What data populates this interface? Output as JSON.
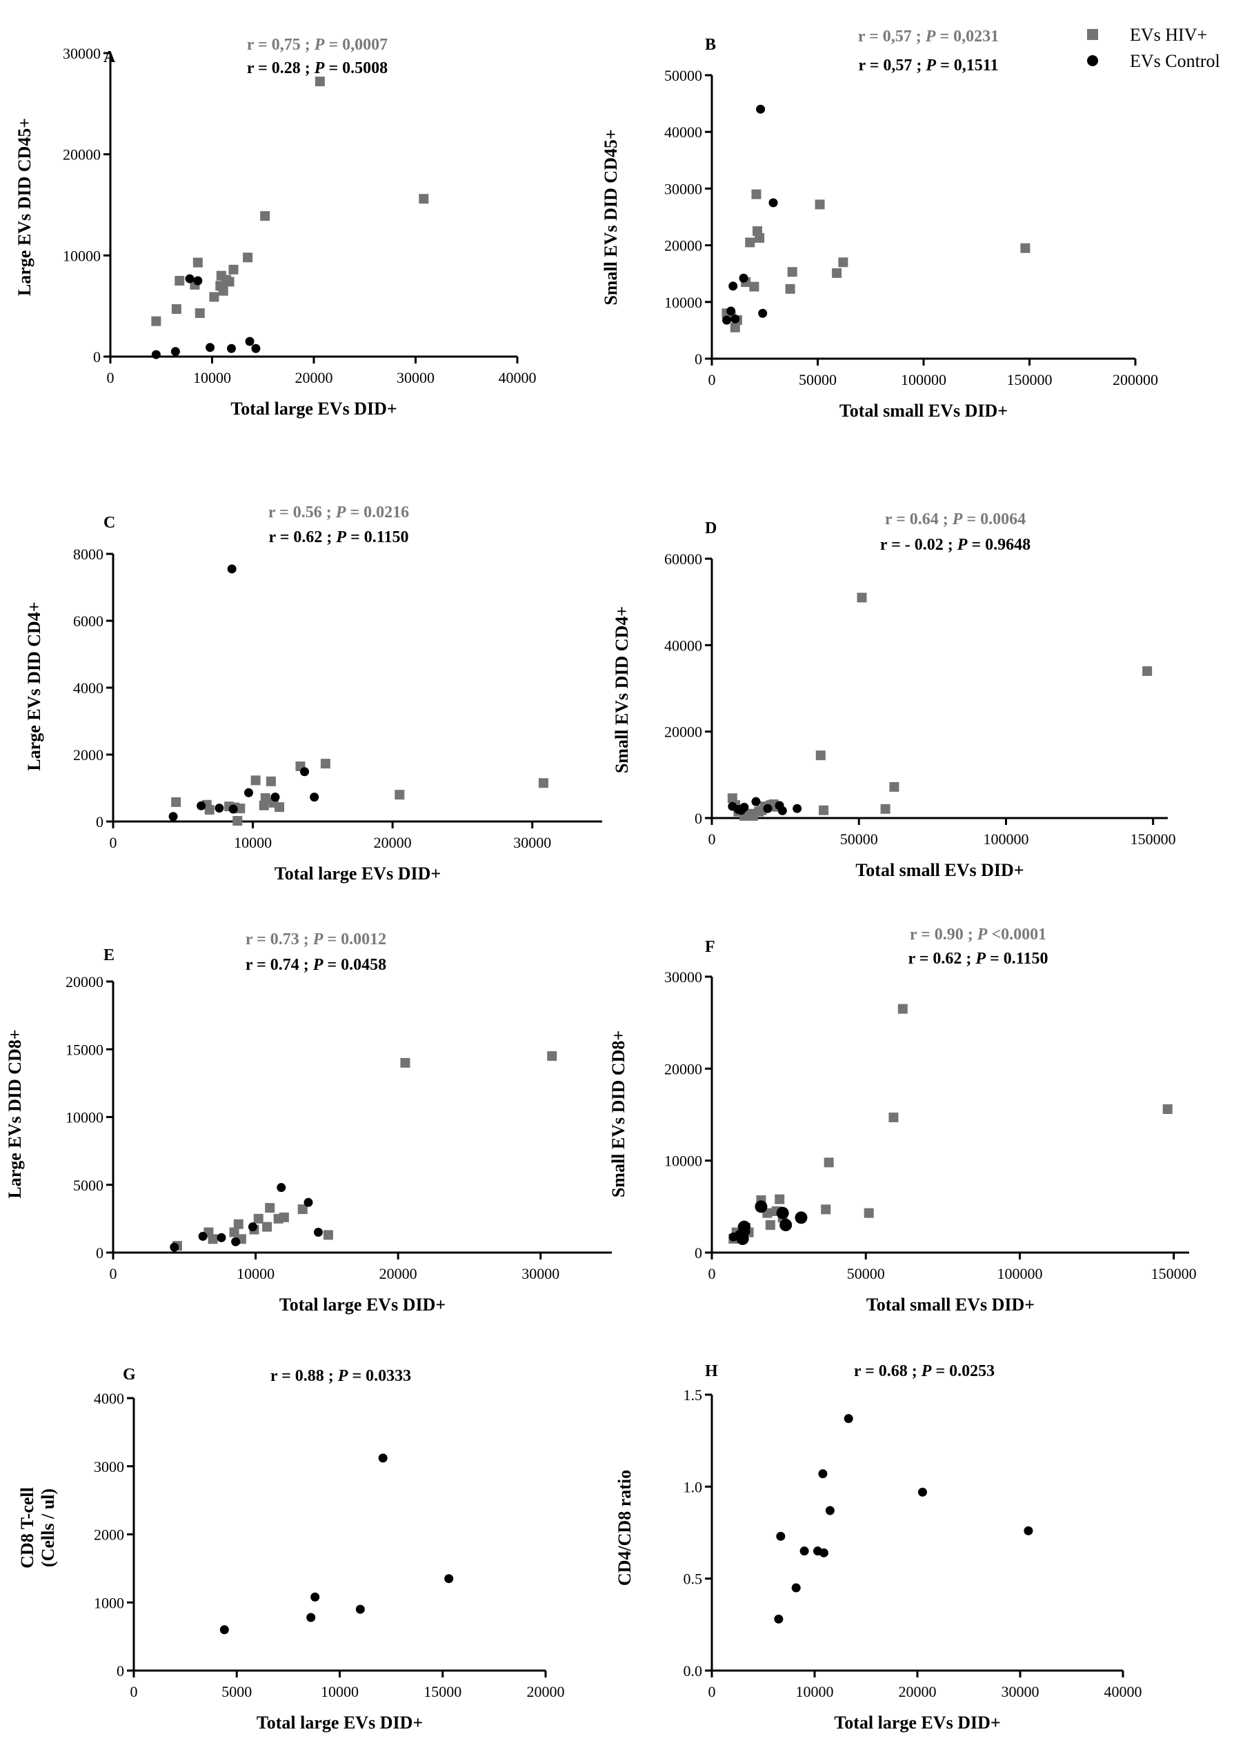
{
  "legend": {
    "hiv_label": "EVs  HIV+",
    "control_label": "EVs  Control"
  },
  "colors": {
    "hiv": "#737373",
    "control": "#000000",
    "hiv_stat": "#7a7a7a"
  },
  "chart_data": [
    {
      "id": "A",
      "type": "scatter",
      "xlabel": "Total large EVs DID+",
      "ylabel": "Large EVs DID CD45+",
      "xlim": [
        0,
        40000
      ],
      "ylim": [
        0,
        30000
      ],
      "xticks": [
        0,
        10000,
        20000,
        30000,
        40000
      ],
      "yticks": [
        0,
        10000,
        20000,
        30000
      ],
      "stats": [
        {
          "group": "hiv",
          "r": "r = 0,75 ; ",
          "p": "P",
          "rest": " = 0,0007"
        },
        {
          "group": "control",
          "r": "r = 0.28 ; ",
          "p": "P",
          "rest": " = 0.5008"
        }
      ],
      "series": [
        {
          "name": "EVs HIV+",
          "marker": "square",
          "points": [
            [
              4500,
              3500
            ],
            [
              6500,
              4700
            ],
            [
              6800,
              7500
            ],
            [
              8300,
              7100
            ],
            [
              8800,
              4300
            ],
            [
              8600,
              9300
            ],
            [
              10200,
              5900
            ],
            [
              10800,
              7000
            ],
            [
              10900,
              8000
            ],
            [
              11100,
              6500
            ],
            [
              11400,
              7600
            ],
            [
              11700,
              7400
            ],
            [
              12100,
              8600
            ],
            [
              13500,
              9800
            ],
            [
              15200,
              13900
            ],
            [
              20600,
              27200
            ],
            [
              30800,
              15600
            ]
          ]
        },
        {
          "name": "EVs Control",
          "marker": "circle",
          "points": [
            [
              4500,
              200
            ],
            [
              6400,
              500
            ],
            [
              7800,
              7700
            ],
            [
              8600,
              7500
            ],
            [
              9800,
              900
            ],
            [
              11900,
              800
            ],
            [
              13700,
              1500
            ],
            [
              14300,
              800
            ]
          ]
        }
      ]
    },
    {
      "id": "B",
      "type": "scatter",
      "xlabel": "Total small EVs DID+",
      "ylabel": "Small EVs DID CD45+",
      "xlim": [
        0,
        200000
      ],
      "ylim": [
        0,
        50000
      ],
      "xticks": [
        0,
        50000,
        100000,
        150000,
        200000
      ],
      "yticks": [
        0,
        10000,
        20000,
        30000,
        40000,
        50000
      ],
      "stats": [
        {
          "group": "hiv",
          "r": "r = 0,57 ; ",
          "p": "P",
          "rest": " = 0,0231"
        },
        {
          "group": "control",
          "r": "r = 0,57 ; ",
          "p": "P",
          "rest": " = 0,1511"
        }
      ],
      "series": [
        {
          "name": "EVs HIV+",
          "marker": "square",
          "points": [
            [
              7000,
              8000
            ],
            [
              9000,
              7500
            ],
            [
              11000,
              5500
            ],
            [
              12000,
              6800
            ],
            [
              16000,
              13500
            ],
            [
              18000,
              20500
            ],
            [
              20000,
              12700
            ],
            [
              21000,
              29000
            ],
            [
              21500,
              22500
            ],
            [
              22500,
              21300
            ],
            [
              37000,
              12300
            ],
            [
              38000,
              15300
            ],
            [
              51000,
              27200
            ],
            [
              59000,
              15100
            ],
            [
              62000,
              17000
            ],
            [
              148000,
              19500
            ]
          ]
        },
        {
          "name": "EVs Control",
          "marker": "circle",
          "points": [
            [
              7000,
              6800
            ],
            [
              9000,
              8400
            ],
            [
              10000,
              12800
            ],
            [
              11000,
              7000
            ],
            [
              15000,
              14200
            ],
            [
              23000,
              44000
            ],
            [
              24000,
              8000
            ],
            [
              29000,
              27500
            ]
          ]
        }
      ]
    },
    {
      "id": "C",
      "type": "scatter",
      "xlabel": "Total large EVs DID+",
      "ylabel": "Large EVs DID CD4+",
      "xlim": [
        0,
        35000
      ],
      "ylim": [
        0,
        8000
      ],
      "xticks": [
        0,
        10000,
        20000,
        30000
      ],
      "yticks": [
        0,
        2000,
        4000,
        6000,
        8000
      ],
      "stats": [
        {
          "group": "hiv",
          "r": "r = 0.56 ; ",
          "p": "P",
          "rest": " = 0.0216"
        },
        {
          "group": "control",
          "r": "r = 0.62 ; ",
          "p": "P",
          "rest": " = 0.1150"
        }
      ],
      "series": [
        {
          "name": "EVs HIV+",
          "marker": "square",
          "points": [
            [
              4500,
              580
            ],
            [
              6700,
              500
            ],
            [
              6900,
              350
            ],
            [
              8300,
              450
            ],
            [
              8700,
              420
            ],
            [
              8900,
              20
            ],
            [
              9100,
              390
            ],
            [
              10200,
              1230
            ],
            [
              10800,
              480
            ],
            [
              10900,
              700
            ],
            [
              11300,
              1200
            ],
            [
              11500,
              560
            ],
            [
              11900,
              430
            ],
            [
              13400,
              1650
            ],
            [
              15200,
              1730
            ],
            [
              20500,
              800
            ],
            [
              30800,
              1150
            ]
          ]
        },
        {
          "name": "EVs Control",
          "marker": "circle",
          "points": [
            [
              4300,
              150
            ],
            [
              6300,
              470
            ],
            [
              7600,
              400
            ],
            [
              8500,
              7550
            ],
            [
              8600,
              370
            ],
            [
              9700,
              860
            ],
            [
              11600,
              730
            ],
            [
              13700,
              1490
            ],
            [
              14400,
              730
            ]
          ]
        }
      ]
    },
    {
      "id": "D",
      "type": "scatter",
      "xlabel": "Total small EVs DID+",
      "ylabel": "Small EVs DID CD4+",
      "xlim": [
        0,
        155000
      ],
      "ylim": [
        0,
        60000
      ],
      "xticks": [
        0,
        50000,
        100000,
        150000
      ],
      "yticks": [
        0,
        20000,
        40000,
        60000
      ],
      "stats": [
        {
          "group": "hiv",
          "r": "r = 0.64 ; ",
          "p": "P",
          "rest": " = 0.0064"
        },
        {
          "group": "control",
          "r": "r = - 0.02 ; ",
          "p": "P",
          "rest": " = 0.9648"
        }
      ],
      "series": [
        {
          "name": "EVs HIV+",
          "marker": "square",
          "points": [
            [
              7000,
              4600
            ],
            [
              8000,
              3000
            ],
            [
              9000,
              1500
            ],
            [
              10000,
              2000
            ],
            [
              11000,
              500
            ],
            [
              13000,
              1000
            ],
            [
              14000,
              500
            ],
            [
              16000,
              1500
            ],
            [
              17000,
              1800
            ],
            [
              18000,
              2700
            ],
            [
              20000,
              3000
            ],
            [
              21000,
              3200
            ],
            [
              22000,
              2600
            ],
            [
              37000,
              14500
            ],
            [
              38000,
              1800
            ],
            [
              51000,
              51000
            ],
            [
              59000,
              2100
            ],
            [
              62000,
              7200
            ],
            [
              148000,
              34000
            ]
          ]
        },
        {
          "name": "EVs Control",
          "marker": "circle",
          "points": [
            [
              7000,
              2700
            ],
            [
              9000,
              2000
            ],
            [
              10000,
              1800
            ],
            [
              11000,
              2500
            ],
            [
              15000,
              3800
            ],
            [
              19000,
              2200
            ],
            [
              23000,
              2900
            ],
            [
              24000,
              1700
            ],
            [
              29000,
              2200
            ]
          ]
        }
      ]
    },
    {
      "id": "E",
      "type": "scatter",
      "xlabel": "Total large EVs DID+",
      "ylabel": "Large EVs DID CD8+",
      "xlim": [
        0,
        35000
      ],
      "ylim": [
        0,
        20000
      ],
      "xticks": [
        0,
        10000,
        20000,
        30000
      ],
      "yticks": [
        0,
        5000,
        10000,
        15000,
        20000
      ],
      "stats": [
        {
          "group": "hiv",
          "r": "r = 0.73 ; ",
          "p": "P",
          "rest": " = 0.0012"
        },
        {
          "group": "control",
          "r": "r = 0.74 ; ",
          "p": "P",
          "rest": " = 0.0458"
        }
      ],
      "series": [
        {
          "name": "EVs HIV+",
          "marker": "square",
          "points": [
            [
              4500,
              500
            ],
            [
              6700,
              1500
            ],
            [
              7000,
              1000
            ],
            [
              8500,
              1500
            ],
            [
              8800,
              2100
            ],
            [
              9000,
              1000
            ],
            [
              9900,
              1700
            ],
            [
              10200,
              2500
            ],
            [
              10800,
              1900
            ],
            [
              11000,
              3300
            ],
            [
              11600,
              2500
            ],
            [
              12000,
              2600
            ],
            [
              13300,
              3200
            ],
            [
              15100,
              1300
            ],
            [
              20500,
              14000
            ],
            [
              30800,
              14500
            ]
          ]
        },
        {
          "name": "EVs Control",
          "marker": "circle",
          "points": [
            [
              4300,
              400
            ],
            [
              6300,
              1200
            ],
            [
              7600,
              1100
            ],
            [
              8600,
              800
            ],
            [
              9800,
              1900
            ],
            [
              11800,
              4800
            ],
            [
              13700,
              3700
            ],
            [
              14400,
              1500
            ]
          ]
        }
      ]
    },
    {
      "id": "F",
      "type": "scatter",
      "xlabel": "Total small EVs DID+",
      "ylabel": "Small EVs DID CD8+",
      "xlim": [
        0,
        155000
      ],
      "ylim": [
        0,
        30000
      ],
      "xticks": [
        0,
        50000,
        100000,
        150000
      ],
      "yticks": [
        0,
        10000,
        20000,
        30000
      ],
      "stats": [
        {
          "group": "hiv",
          "r": "r = 0.90 ; ",
          "p": "P",
          "rest": " <0.0001"
        },
        {
          "group": "control",
          "r": "r = 0.62 ; ",
          "p": "P",
          "rest": " = 0.1150"
        }
      ],
      "series": [
        {
          "name": "EVs HIV+",
          "marker": "square",
          "points": [
            [
              7000,
              1500
            ],
            [
              8000,
              2200
            ],
            [
              9000,
              1800
            ],
            [
              10000,
              2500
            ],
            [
              11000,
              2700
            ],
            [
              12000,
              2200
            ],
            [
              16000,
              5700
            ],
            [
              18000,
              4300
            ],
            [
              19000,
              3000
            ],
            [
              21000,
              4500
            ],
            [
              22000,
              5800
            ],
            [
              23000,
              3800
            ],
            [
              37000,
              4700
            ],
            [
              38000,
              9800
            ],
            [
              51000,
              4300
            ],
            [
              59000,
              14700
            ],
            [
              62000,
              26500
            ],
            [
              148000,
              15600
            ]
          ]
        },
        {
          "name": "EVs Control",
          "marker": "circle",
          "points": [
            [
              7000,
              1700
            ],
            [
              9000,
              2000
            ],
            [
              10000,
              1500
            ],
            [
              10500,
              2800
            ],
            [
              11000,
              2300
            ],
            [
              16000,
              5000
            ],
            [
              23000,
              4300
            ],
            [
              24000,
              3000
            ],
            [
              29000,
              3800
            ]
          ]
        }
      ]
    },
    {
      "id": "G",
      "type": "scatter",
      "xlabel": "Total large EVs DID+",
      "ylabel": "CD8 T-cell",
      "ylabel2": "(Cells / ul)",
      "xlim": [
        0,
        20000
      ],
      "ylim": [
        0,
        4000
      ],
      "xticks": [
        0,
        5000,
        10000,
        15000,
        20000
      ],
      "yticks": [
        0,
        1000,
        2000,
        3000,
        4000
      ],
      "stats": [
        {
          "group": "control",
          "r": "r = 0.88 ; ",
          "p": "P",
          "rest": " = 0.0333"
        }
      ],
      "series": [
        {
          "name": "EVs Control",
          "marker": "circle",
          "points": [
            [
              4400,
              600
            ],
            [
              8600,
              780
            ],
            [
              8800,
              1080
            ],
            [
              11000,
              900
            ],
            [
              12100,
              3120
            ],
            [
              15300,
              1350
            ]
          ]
        }
      ]
    },
    {
      "id": "H",
      "type": "scatter",
      "xlabel": "Total large EVs DID+",
      "ylabel": "CD4/CD8 ratio",
      "xlim": [
        0,
        40000
      ],
      "ylim": [
        0,
        1.5
      ],
      "xticks": [
        0,
        10000,
        20000,
        30000,
        40000
      ],
      "yticks": [
        0,
        0.5,
        1.0,
        1.5
      ],
      "yticklabels": [
        "0.0",
        "0.5",
        "1.0",
        "1.5"
      ],
      "stats": [
        {
          "group": "control",
          "r": "r = 0.68 ; ",
          "p": "P",
          "rest": " = 0.0253"
        }
      ],
      "series": [
        {
          "name": "EVs Control",
          "marker": "circle",
          "points": [
            [
              6500,
              0.28
            ],
            [
              6700,
              0.73
            ],
            [
              8200,
              0.45
            ],
            [
              9000,
              0.65
            ],
            [
              10300,
              0.65
            ],
            [
              10800,
              1.07
            ],
            [
              10900,
              0.64
            ],
            [
              11500,
              0.87
            ],
            [
              13300,
              1.37
            ],
            [
              20500,
              0.97
            ],
            [
              30800,
              0.76
            ]
          ]
        }
      ]
    }
  ]
}
